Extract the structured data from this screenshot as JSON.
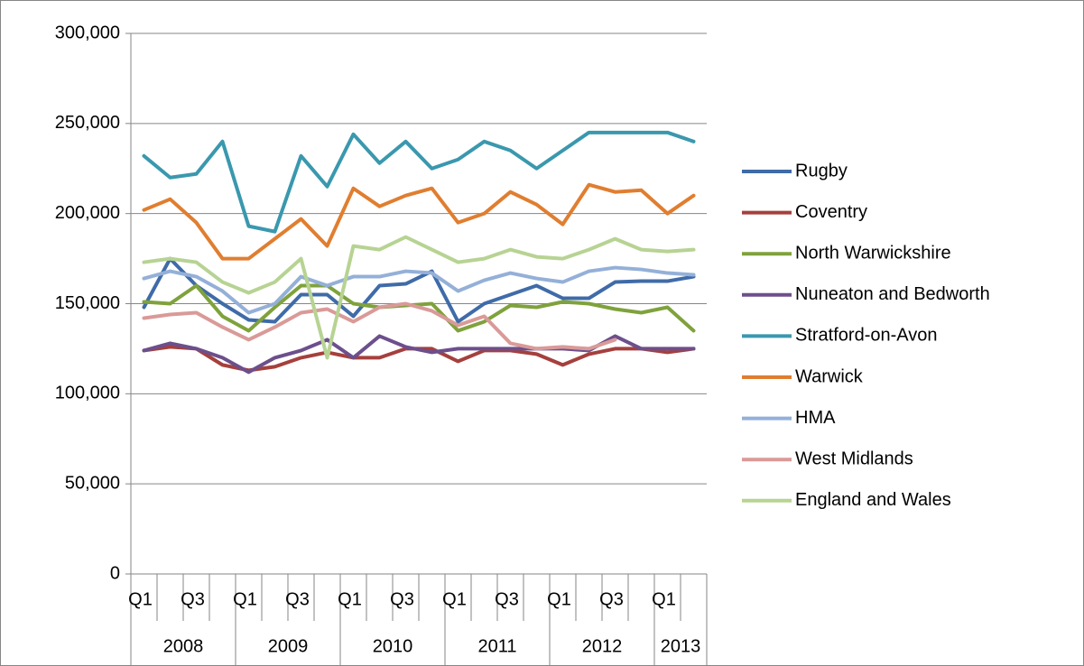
{
  "chart_data": {
    "type": "line",
    "categories": [
      "Q1",
      null,
      "Q3",
      null,
      "Q1",
      null,
      "Q3",
      null,
      "Q1",
      null,
      "Q3",
      null,
      "Q1",
      null,
      "Q3",
      null,
      "Q1",
      null,
      "Q3",
      null,
      "Q1",
      null
    ],
    "groups": [
      {
        "label": "2008",
        "size": 4
      },
      {
        "label": "2009",
        "size": 4
      },
      {
        "label": "2010",
        "size": 4
      },
      {
        "label": "2011",
        "size": 4
      },
      {
        "label": "2012",
        "size": 4
      },
      {
        "label": "2013",
        "size": 2
      }
    ],
    "ylim": [
      0,
      300000
    ],
    "yticks": [
      0,
      {
        "value": 50000,
        "label": "50,000"
      },
      {
        "value": 100000,
        "label": "100,000"
      },
      {
        "value": 150000,
        "label": "150,000"
      },
      {
        "value": 200000,
        "label": "200,000"
      },
      {
        "value": 250000,
        "label": "250,000"
      },
      {
        "value": 300000,
        "label": "300,000"
      }
    ],
    "grid": true,
    "legend": "right",
    "series": [
      {
        "name": "Rugby",
        "color": "#3F6BA8",
        "values": [
          148000,
          175000,
          160000,
          150000,
          141000,
          140000,
          155000,
          155000,
          143000,
          160000,
          161000,
          168000,
          140000,
          150000,
          155000,
          160000,
          153000,
          153000,
          162000,
          162500,
          162500,
          165000
        ]
      },
      {
        "name": "Coventry",
        "color": "#A5403D",
        "values": [
          124000,
          126000,
          125000,
          116000,
          113000,
          115000,
          120000,
          123000,
          120000,
          120000,
          125000,
          125000,
          118000,
          124000,
          124000,
          122000,
          116000,
          122000,
          125000,
          125000,
          123000,
          125000
        ]
      },
      {
        "name": "North Warwickshire",
        "color": "#7FA23C",
        "values": [
          151000,
          150000,
          160000,
          143000,
          135000,
          148000,
          160000,
          160000,
          150000,
          148000,
          149000,
          150000,
          135000,
          140000,
          149000,
          148000,
          151000,
          150000,
          147000,
          145000,
          148000,
          135000
        ]
      },
      {
        "name": "Nuneaton and Bedworth",
        "color": "#6C4F8C",
        "values": [
          124000,
          128000,
          125000,
          120000,
          112000,
          120000,
          124000,
          130000,
          120000,
          132000,
          126000,
          123000,
          125000,
          125000,
          125000,
          125000,
          125000,
          124000,
          132000,
          125000,
          125000,
          125000
        ]
      },
      {
        "name": "Stratford-on-Avon",
        "color": "#3A98AE",
        "values": [
          232000,
          220000,
          222000,
          240000,
          193000,
          190000,
          232000,
          215000,
          244000,
          228000,
          240000,
          225000,
          230000,
          240000,
          235000,
          225000,
          235000,
          245000,
          245000,
          245000,
          245000,
          240000
        ]
      },
      {
        "name": "Warwick",
        "color": "#E07E30",
        "values": [
          202000,
          208000,
          195000,
          175000,
          175000,
          186000,
          197000,
          182000,
          214000,
          204000,
          210000,
          214000,
          195000,
          200000,
          212000,
          205000,
          194000,
          216000,
          212000,
          213000,
          200000,
          210000
        ]
      },
      {
        "name": "HMA",
        "color": "#94B0D8",
        "values": [
          164000,
          168000,
          165000,
          157000,
          145000,
          150000,
          165000,
          160000,
          165000,
          165000,
          168000,
          167000,
          157000,
          163000,
          167000,
          164000,
          162000,
          168000,
          170000,
          169000,
          167000,
          166000
        ]
      },
      {
        "name": "West Midlands",
        "color": "#D99A98",
        "values": [
          142000,
          144000,
          145000,
          137000,
          130000,
          137000,
          145000,
          147000,
          140000,
          148000,
          150000,
          146000,
          138000,
          143000,
          128000,
          125000,
          126000,
          125000,
          130000,
          null,
          null,
          null
        ]
      },
      {
        "name": "England and Wales",
        "color": "#B7D393",
        "values": [
          173000,
          175000,
          173000,
          162000,
          156000,
          162000,
          175000,
          120000,
          182000,
          180000,
          187000,
          180000,
          173000,
          175000,
          180000,
          176000,
          175000,
          180000,
          186000,
          180000,
          179000,
          180000
        ]
      }
    ]
  }
}
